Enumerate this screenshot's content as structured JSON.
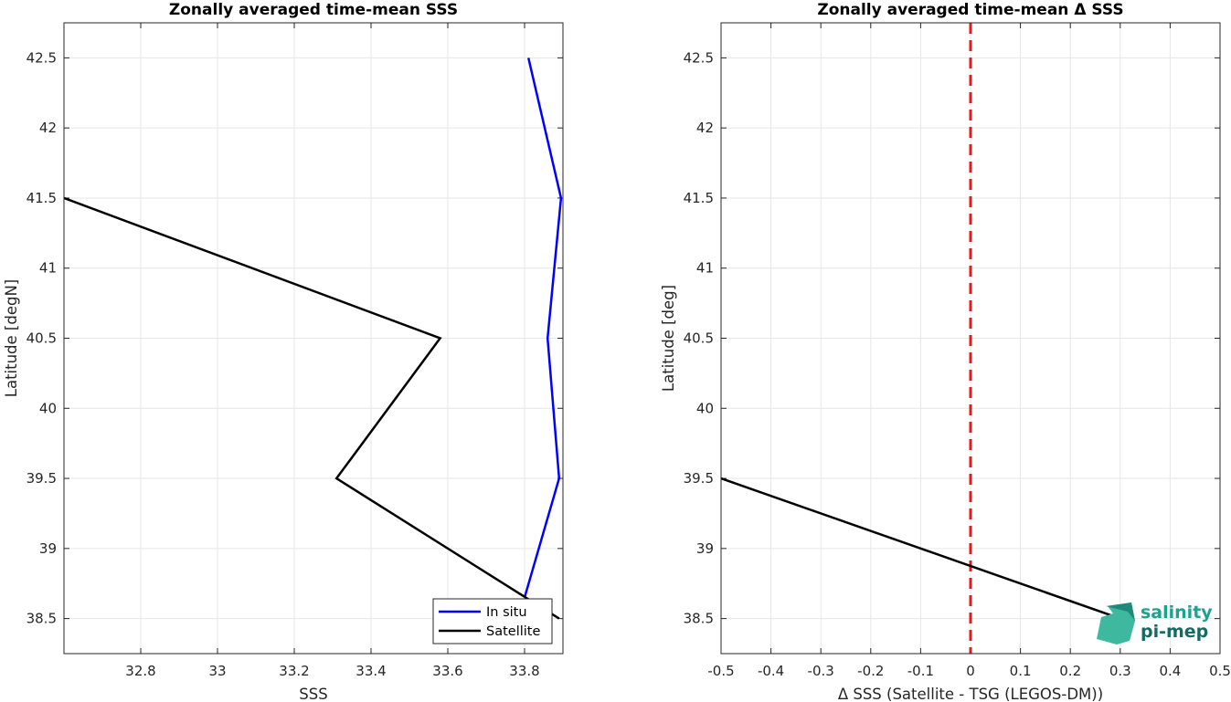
{
  "chart_data": [
    {
      "type": "line",
      "title": "Zonally averaged time-mean SSS",
      "xlabel": "SSS",
      "ylabel": "Latitude [degN]",
      "xlim": [
        32.6,
        33.9
      ],
      "ylim": [
        38.25,
        42.75
      ],
      "xticks": [
        32.8,
        33,
        33.2,
        33.4,
        33.6,
        33.8
      ],
      "xtick_labels": [
        "32.8",
        "33",
        "33.2",
        "33.4",
        "33.6",
        "33.8"
      ],
      "yticks": [
        38.5,
        39,
        39.5,
        40,
        40.5,
        41,
        41.5,
        42,
        42.5
      ],
      "ytick_labels": [
        "38.5",
        "39",
        "39.5",
        "40",
        "40.5",
        "41",
        "41.5",
        "42",
        "42.5"
      ],
      "grid": true,
      "legend": "bottom-right",
      "series": [
        {
          "name": "In situ",
          "color": "#0000ff",
          "x": [
            33.8,
            33.89,
            33.86,
            33.895,
            33.81
          ],
          "y": [
            38.65,
            39.5,
            40.5,
            41.5,
            42.5
          ]
        },
        {
          "name": "Satellite",
          "color": "#000000",
          "x": [
            33.89,
            33.31,
            33.58,
            32.6
          ],
          "y": [
            38.5,
            39.5,
            40.5,
            41.5
          ]
        }
      ]
    },
    {
      "type": "line",
      "title": "Zonally averaged time-mean Δ SSS",
      "xlabel": "Δ SSS (Satellite - TSG (LEGOS-DM))",
      "ylabel": "Latitude [deg]",
      "xlim": [
        -0.5,
        0.5
      ],
      "ylim": [
        38.25,
        42.75
      ],
      "xticks": [
        -0.5,
        -0.4,
        -0.3,
        -0.2,
        -0.1,
        0,
        0.1,
        0.2,
        0.3,
        0.4,
        0.5
      ],
      "xtick_labels": [
        "-0.5",
        "-0.4",
        "-0.3",
        "-0.2",
        "-0.1",
        "0",
        "0.1",
        "0.2",
        "0.3",
        "0.4",
        "0.5"
      ],
      "yticks": [
        38.5,
        39,
        39.5,
        40,
        40.5,
        41,
        41.5,
        42,
        42.5
      ],
      "ytick_labels": [
        "38.5",
        "39",
        "39.5",
        "40",
        "40.5",
        "41",
        "41.5",
        "42",
        "42.5"
      ],
      "grid": true,
      "reference_line": {
        "x": 0,
        "color": "#e41a1c",
        "style": "dashed"
      },
      "series": [
        {
          "color": "#000000",
          "x": [
            -0.5,
            0.3
          ],
          "y": [
            39.5,
            38.5
          ]
        }
      ]
    }
  ],
  "logo": {
    "line1": "salinity",
    "line2": "pi-mep"
  }
}
